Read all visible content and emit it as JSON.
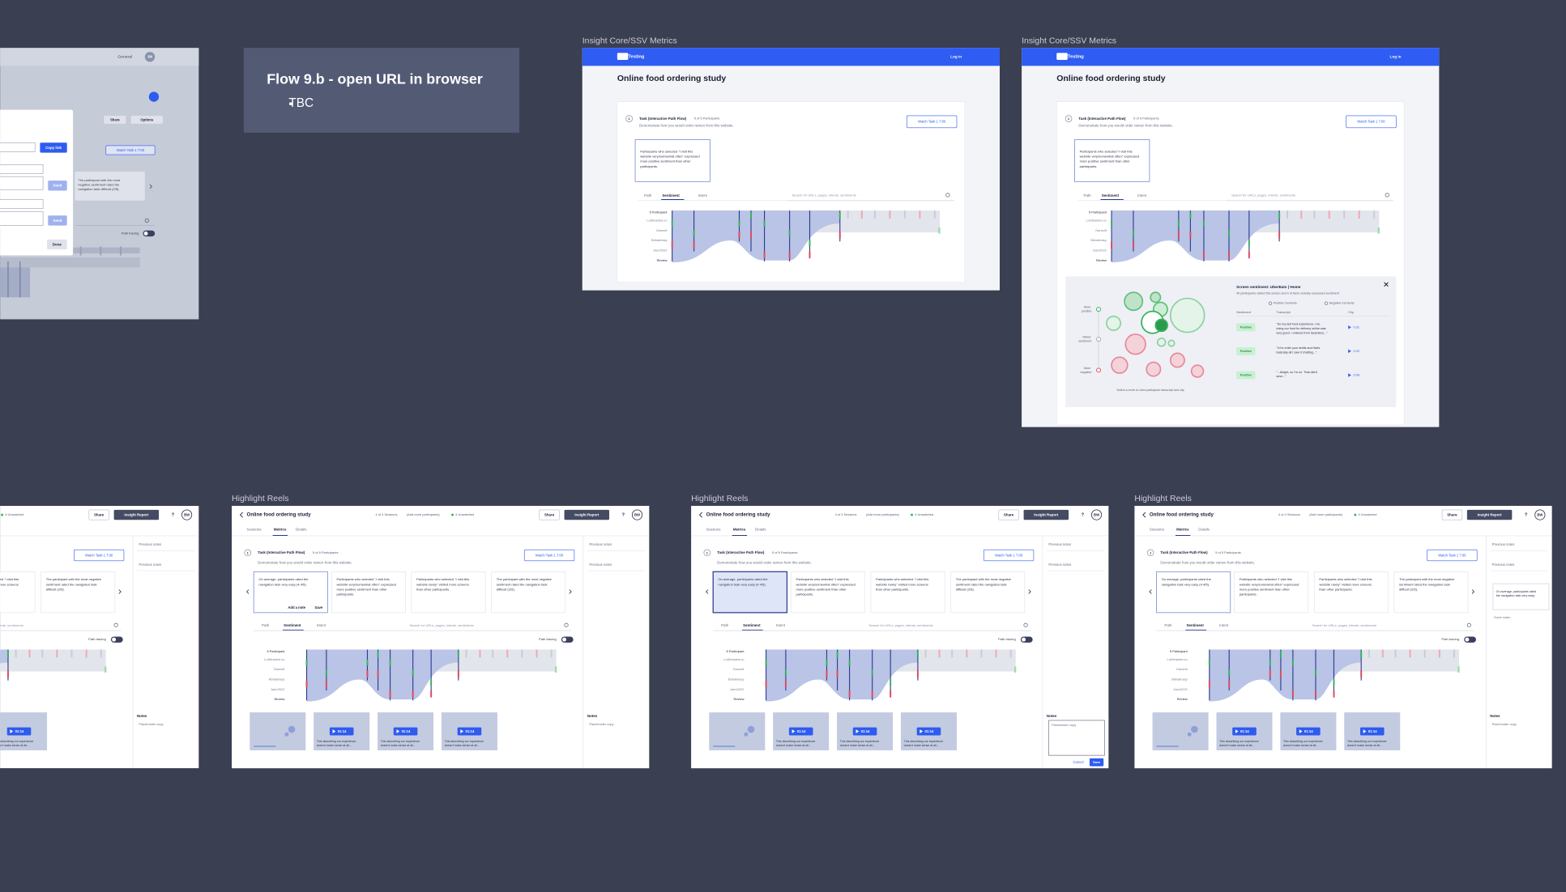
{
  "note": {
    "title": "Flow 9.b - open URL in browser",
    "bullets": [
      "TBC"
    ]
  },
  "frame_labels": [
    "Insight Core/SSV Metrics",
    "Insight Core/SSV Metrics",
    "Highlight Reels",
    "Highlight Reels",
    "Highlight Reels"
  ],
  "share_dialog": {
    "workspace": "General",
    "avatar": "JW",
    "share": "Share",
    "options": "Options",
    "copy_link": "Copy link",
    "send": "Send",
    "done": "Done",
    "watch": "Watch Task 1  7:00",
    "insight": "The participant with the most negative sentiment rated the navigation task difficult (2/5).",
    "path_tracing": "Path tracing"
  },
  "metrics": {
    "brand": "UserTesting",
    "login": "Log in",
    "title": "Online food ordering study",
    "task_number": "1",
    "task": "Task (Interactive Path Flow)",
    "participants": "5 of 5 Participants",
    "task_desc": "Demonstrate how you would order ramen from this website.",
    "watch": "Watch Task 1  7:00",
    "insight": "Participants who selected \"I visit this website very/somewhat often\" expressed more positive sentiment than other participants.",
    "tabs": [
      "Path",
      "Sentiment",
      "Intent"
    ],
    "search": "Search for URLs, pages, intents, sentiments",
    "rows": [
      "5 Participant",
      "Lo&feasted.co",
      "Gansoft",
      "Bbbakhasy",
      "Jaen2022",
      "Review"
    ]
  },
  "sentiment_panel": {
    "title": "Screen sentiment: UberEats | Home",
    "summary": "40 participants visited this screen and 4 of them verbally expressed sentiment",
    "legend": [
      "Positive moments",
      "Negative moments"
    ],
    "columns": [
      "Sentiment",
      "Transcript",
      "Clip"
    ],
    "scale": [
      "More positive",
      "Mixed sentiment",
      "More negative"
    ],
    "rows": [
      {
        "sentiment": "Positive",
        "transcript": "\"So my last food experience, I be doing our food for delivery online was very good. I ordered from Seamless...\"",
        "clip": "0:31"
      },
      {
        "sentiment": "Positive",
        "transcript": "\"I'd to enter your drafts and that's basically all I saw it chatting...\"",
        "clip": "0:22"
      },
      {
        "sentiment": "Positive",
        "transcript": "\"...Alright, so I'm on. That didn't save...\"",
        "clip": "0:06"
      }
    ],
    "hint": "Select a circle to view participant transcript and clip"
  },
  "highlight": {
    "title": "Online food ordering study",
    "sessions": "4 of 4 Sessions",
    "add_participants": "(Add more participants)",
    "unwatched": "4 Unwatched",
    "share": "Share",
    "report": "Insight Report",
    "help": "?",
    "avatar": "BW",
    "tabs": [
      "Sessions",
      "Metrics",
      "Details"
    ],
    "task_number": "1",
    "task": "Task (Interactive Path Flow)",
    "participants": "5 of 5 Participants",
    "task_desc": "Demonstrate how you would order ramen from this website.",
    "watch": "Watch Task 1  7:00",
    "cards": [
      "On average, participants rated the navigation task very easy (4.4/5).",
      "Participants who selected \"I visit this website very/somewhat often\" expressed more positive sentiment than other participants.",
      "Participants who selected \"I visit this website rarely\" visited more screens than other participants.",
      "The participant with the most negative sentiment rated the navigation task difficult (2/5)."
    ],
    "add_note": "Add a note",
    "save": "Save",
    "flow_tabs": [
      "Path",
      "Sentiment",
      "Intent"
    ],
    "search": "Search for URLs, pages, intents, sentiments",
    "path_tracing": "Path tracing",
    "rows": [
      "5 Participant",
      "Lo&feasted.co",
      "Gansoft",
      "Bbbakhasy",
      "Jaen2022",
      "Review"
    ],
    "previous_notes": "Previous notes",
    "notes": "Notes",
    "placeholder": "Placeholder copy",
    "clip_time": "01:14",
    "clip_caption": "This describing our experience doesn't make sense at all...",
    "cancel": "Cancel",
    "note_card": "On average, participants rated the navigation task very easy",
    "some_notes": "Some notes..."
  }
}
